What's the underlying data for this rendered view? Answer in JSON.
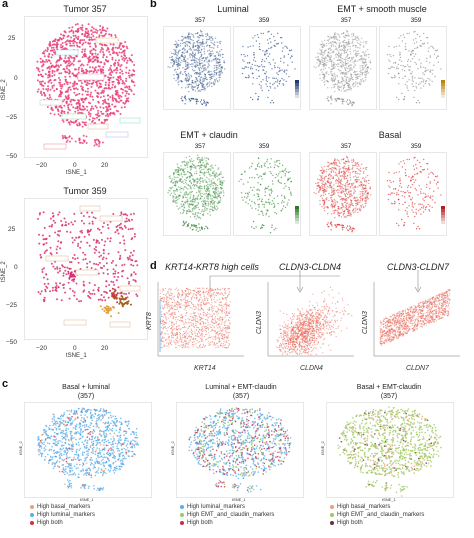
{
  "panels": {
    "a": {
      "letter": "a",
      "top_title": "Tumor 357",
      "bottom_title": "Tumor 359",
      "xlabel": "tSNE_1",
      "ylabel": "tSNE_2",
      "x_ticks": [
        "−20",
        "0",
        "20"
      ],
      "y_ticks": [
        "25",
        "0",
        "−25",
        "−50"
      ]
    },
    "b": {
      "letter": "b",
      "groups": [
        {
          "name": "Luminal",
          "samples": [
            "357",
            "359"
          ],
          "color": "#3b5a8c"
        },
        {
          "name": "EMT + smooth muscle",
          "samples": [
            "357",
            "359"
          ],
          "color": "#8f8f8f"
        },
        {
          "name": "EMT + claudin",
          "samples": [
            "357",
            "359"
          ],
          "color": "#3c8c3c"
        },
        {
          "name": "Basal",
          "samples": [
            "357",
            "359"
          ],
          "color": "#d84040"
        }
      ],
      "xlabel": "tSNE_1",
      "ylabel": "tSNE_2"
    },
    "d": {
      "letter": "d",
      "plots": [
        {
          "title": "KRT14-KRT8 high cells",
          "xlabel": "KRT14",
          "ylabel": "KRT8"
        },
        {
          "title": "CLDN3-CLDN4",
          "xlabel": "CLDN4",
          "ylabel": "CLDN3"
        },
        {
          "title": "CLDN3-CLDN7",
          "xlabel": "CLDN7",
          "ylabel": "CLDN3"
        }
      ]
    },
    "c": {
      "letter": "c",
      "plots": [
        {
          "title_line1": "Basal + luminal",
          "title_line2": "(357)",
          "legend": [
            "High basal_markers",
            "High luminal_markers",
            "High both"
          ],
          "colors": [
            "#e8a07a",
            "#5aaee8",
            "#d03040"
          ]
        },
        {
          "title_line1": "Luminal + EMT-claudin",
          "title_line2": "(357)",
          "legend": [
            "High luminal_markers",
            "High EMT_and_claudin_markers",
            "High both"
          ],
          "colors": [
            "#5aaee8",
            "#a0c860",
            "#c03050"
          ]
        },
        {
          "title_line1": "Basal + EMT-claudin",
          "title_line2": "(357)",
          "legend": [
            "High basal_markers",
            "High EMT_and_claudin_markers",
            "High both"
          ],
          "colors": [
            "#e8a07a",
            "#a0c860",
            "#6a3040"
          ]
        }
      ],
      "xlabel": "tSNE_1",
      "ylabel": "tSNE_2"
    }
  }
}
